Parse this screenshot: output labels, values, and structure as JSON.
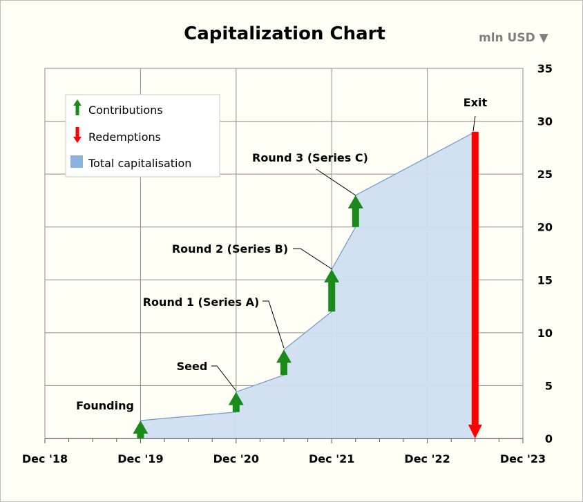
{
  "chart_data": {
    "type": "area",
    "title": "Capitalization Chart",
    "unit_label": "mln USD",
    "unit_arrow": "▼",
    "xlabel": "",
    "ylabel": "",
    "x_range": [
      "2018-12",
      "2023-12"
    ],
    "x_tick_labels": [
      "Dec '18",
      "Dec '19",
      "Dec '20",
      "Dec '21",
      "Dec '22",
      "Dec '23"
    ],
    "ylim": [
      0,
      35
    ],
    "y_ticks": [
      0,
      5,
      10,
      15,
      20,
      25,
      30,
      35
    ],
    "grid": true,
    "y_axis_side": "right",
    "legend": {
      "placement": "top-left",
      "items": [
        {
          "label": "Contributions",
          "icon": "green-up-arrow-icon"
        },
        {
          "label": "Redemptions",
          "icon": "red-down-arrow-icon"
        },
        {
          "label": "Total capitalisation",
          "icon": "blue-square-icon"
        }
      ]
    },
    "colors": {
      "contribution": "#1a8a1a",
      "redemption": "#ff0000",
      "area_fill": "#cfdff1",
      "area_line": "#6f96c8",
      "grid": "#8c8c8c",
      "legend_swatch": "#8eb2e0"
    },
    "series": [
      {
        "name": "Total capitalisation",
        "points": [
          {
            "date": "2019-12",
            "value": 1.7
          },
          {
            "date": "2020-12",
            "value": 2.5
          },
          {
            "date": "2020-12",
            "value": 4.4
          },
          {
            "date": "2021-06",
            "value": 6.0
          },
          {
            "date": "2021-06",
            "value": 8.4
          },
          {
            "date": "2021-12",
            "value": 12.0
          },
          {
            "date": "2021-12",
            "value": 16.0
          },
          {
            "date": "2022-03",
            "value": 20.0
          },
          {
            "date": "2022-03",
            "value": 23.0
          },
          {
            "date": "2023-06",
            "value": 29.0
          }
        ]
      }
    ],
    "events": [
      {
        "label": "Founding",
        "date": "2019-12",
        "type": "contribution",
        "from": 0,
        "to": 1.7
      },
      {
        "label": "Seed",
        "date": "2020-12",
        "type": "contribution",
        "from": 2.5,
        "to": 4.4
      },
      {
        "label": "Round 1 (Series A)",
        "date": "2021-06",
        "type": "contribution",
        "from": 6.0,
        "to": 8.4
      },
      {
        "label": "Round 2 (Series B)",
        "date": "2021-12",
        "type": "contribution",
        "from": 12.0,
        "to": 16.0
      },
      {
        "label": "Round 3 (Series C)",
        "date": "2022-03",
        "type": "contribution",
        "from": 20.0,
        "to": 23.0
      },
      {
        "label": "Exit",
        "date": "2023-06",
        "type": "redemption",
        "from": 29.0,
        "to": 0
      }
    ]
  }
}
